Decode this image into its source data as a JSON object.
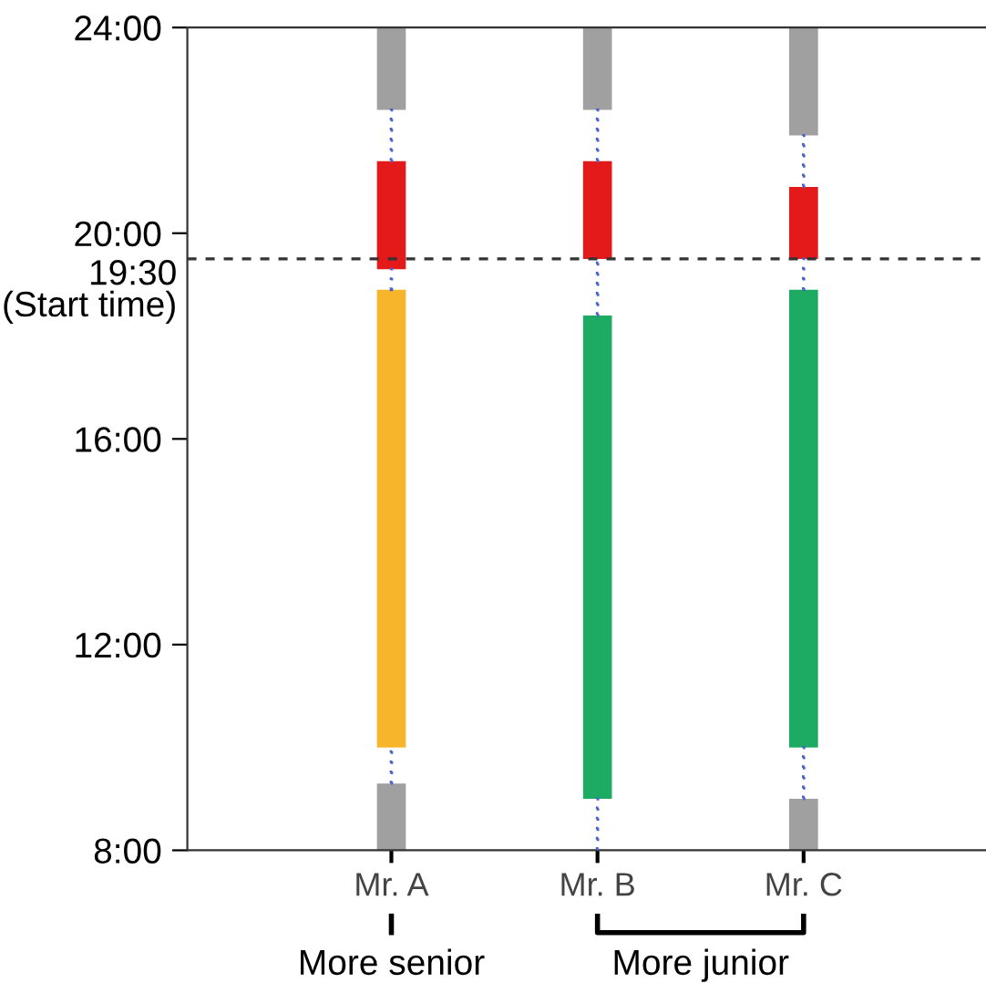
{
  "chart_data": {
    "type": "bar",
    "categories": [
      "Mr. A",
      "Mr. B",
      "Mr. C"
    ],
    "series": [
      {
        "color": "#4a62c8",
        "line_style": "dotted",
        "base": [
          21.4,
          21.4,
          20.9
        ],
        "values": [
          1.0,
          1.0,
          1.0
        ]
      },
      {
        "color": "#4a62c8",
        "line_style": "dotted",
        "base": [
          18.9,
          18.4,
          18.9
        ],
        "values": [
          0.4,
          1.1,
          0.6
        ]
      },
      {
        "color": "#4a62c8",
        "line_style": "dotted",
        "base": [
          9.3,
          8,
          9
        ],
        "values": [
          0.7,
          1,
          1
        ]
      },
      {
        "color": "#a0a0a0",
        "base": [
          22.4,
          22.4,
          21.9
        ],
        "values": [
          1.6,
          1.6,
          2.1
        ]
      },
      {
        "color": "#e41a1a",
        "base": [
          19.3,
          19.5,
          19.5
        ],
        "values": [
          2.1,
          1.9,
          1.4
        ]
      },
      {
        "colors": [
          "#f7b52c",
          "#1dab63",
          "#1dab63"
        ],
        "base": [
          10,
          9,
          10
        ],
        "values": [
          8.9,
          9.4,
          8.9
        ]
      },
      {
        "color": "#a0a0a0",
        "base": [
          8,
          null,
          8
        ],
        "values": [
          1.3,
          null,
          1
        ]
      }
    ],
    "ylim": [
      8,
      24
    ],
    "yticks": [
      {
        "value": 8,
        "label": "8:00"
      },
      {
        "value": 12,
        "label": "12:00"
      },
      {
        "value": 16,
        "label": "16:00"
      },
      {
        "value": 20,
        "label": "20:00"
      },
      {
        "value": 24,
        "label": "24:00"
      }
    ],
    "ref_lines": [
      {
        "axis": "y",
        "value": 19.5,
        "label": "19:30\n(Start time)",
        "color": "#333333",
        "line_style": "dashed"
      }
    ],
    "grid": false,
    "annotations": [
      "More senior",
      "More junior"
    ]
  }
}
